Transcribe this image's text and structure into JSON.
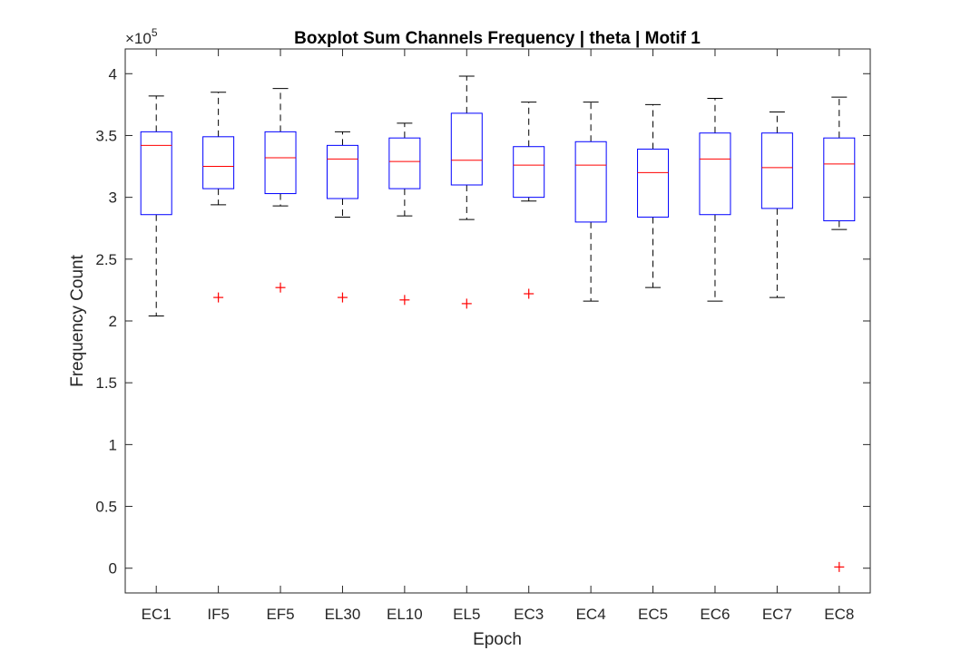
{
  "chart_data": {
    "type": "boxplot",
    "title": "Boxplot Sum Channels Frequency | theta | Motif 1",
    "xlabel": "Epoch",
    "ylabel": "Frequency Count",
    "y_exponent_label": "×10",
    "y_exponent_power": "5",
    "ylim": [
      -0.2,
      4.2
    ],
    "yticks": [
      0,
      0.5,
      1,
      1.5,
      2,
      2.5,
      3,
      3.5,
      4
    ],
    "ytick_labels": [
      "0",
      "0.5",
      "1",
      "1.5",
      "2",
      "2.5",
      "3",
      "3.5",
      "4"
    ],
    "grid": false,
    "colors": {
      "box": "#0000ff",
      "median": "#ff0000",
      "whisker": "#000000",
      "outlier": "#ff0000",
      "axis": "#262626"
    },
    "categories": [
      "EC1",
      "IF5",
      "EF5",
      "EL30",
      "EL10",
      "EL5",
      "EC3",
      "EC4",
      "EC5",
      "EC6",
      "EC7",
      "EC8"
    ],
    "boxes": [
      {
        "label": "EC1",
        "whisker_low": 2.04,
        "q1": 2.86,
        "median": 3.42,
        "q3": 3.53,
        "whisker_high": 3.82,
        "outliers": []
      },
      {
        "label": "IF5",
        "whisker_low": 2.94,
        "q1": 3.07,
        "median": 3.25,
        "q3": 3.49,
        "whisker_high": 3.85,
        "outliers": [
          2.19
        ]
      },
      {
        "label": "EF5",
        "whisker_low": 2.93,
        "q1": 3.03,
        "median": 3.32,
        "q3": 3.53,
        "whisker_high": 3.88,
        "outliers": [
          2.27
        ]
      },
      {
        "label": "EL30",
        "whisker_low": 2.84,
        "q1": 2.99,
        "median": 3.31,
        "q3": 3.42,
        "whisker_high": 3.53,
        "outliers": [
          2.19
        ]
      },
      {
        "label": "EL10",
        "whisker_low": 2.85,
        "q1": 3.07,
        "median": 3.29,
        "q3": 3.48,
        "whisker_high": 3.6,
        "outliers": [
          2.17
        ]
      },
      {
        "label": "EL5",
        "whisker_low": 2.82,
        "q1": 3.1,
        "median": 3.3,
        "q3": 3.68,
        "whisker_high": 3.98,
        "outliers": [
          2.14
        ]
      },
      {
        "label": "EC3",
        "whisker_low": 2.97,
        "q1": 3.0,
        "median": 3.26,
        "q3": 3.41,
        "whisker_high": 3.77,
        "outliers": [
          2.22
        ]
      },
      {
        "label": "EC4",
        "whisker_low": 2.16,
        "q1": 2.8,
        "median": 3.26,
        "q3": 3.45,
        "whisker_high": 3.77,
        "outliers": []
      },
      {
        "label": "EC5",
        "whisker_low": 2.27,
        "q1": 2.84,
        "median": 3.2,
        "q3": 3.39,
        "whisker_high": 3.75,
        "outliers": []
      },
      {
        "label": "EC6",
        "whisker_low": 2.16,
        "q1": 2.86,
        "median": 3.31,
        "q3": 3.52,
        "whisker_high": 3.8,
        "outliers": []
      },
      {
        "label": "EC7",
        "whisker_low": 2.19,
        "q1": 2.91,
        "median": 3.24,
        "q3": 3.52,
        "whisker_high": 3.69,
        "outliers": []
      },
      {
        "label": "EC8",
        "whisker_low": 2.74,
        "q1": 2.81,
        "median": 3.27,
        "q3": 3.48,
        "whisker_high": 3.81,
        "outliers": [
          0.01
        ]
      }
    ]
  }
}
